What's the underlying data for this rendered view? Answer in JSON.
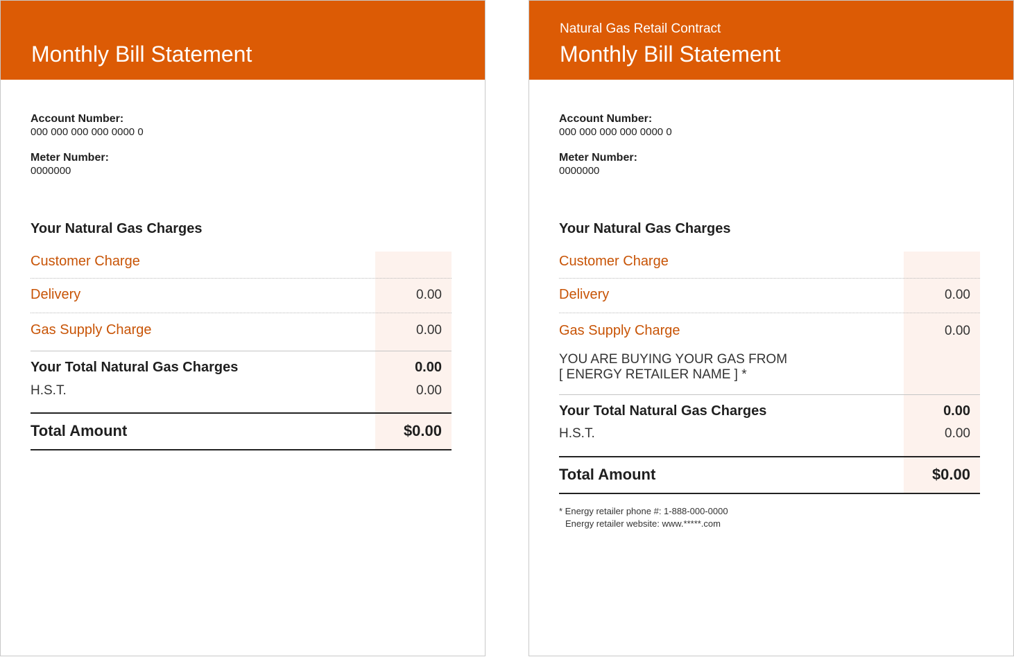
{
  "colors": {
    "accent": "#dc5b05",
    "charge_label": "#c85406",
    "amount_column": "#fdf2ed"
  },
  "left": {
    "title": "Monthly Bill Statement",
    "account_label": "Account Number:",
    "account_value": "000 000 000 000 0000 0",
    "meter_label": "Meter Number:",
    "meter_value": "0000000",
    "section_title": "Your Natural Gas Charges",
    "charges": [
      {
        "label": "Customer Charge",
        "value": ""
      },
      {
        "label": "Delivery",
        "value": "0.00"
      },
      {
        "label": "Gas Supply Charge",
        "value": "0.00"
      }
    ],
    "total_charges_label": "Your Total Natural Gas Charges",
    "total_charges_value": "0.00",
    "hst_label": "H.S.T.",
    "hst_value": "0.00",
    "total_amount_label": "Total Amount",
    "total_amount_value": "$0.00"
  },
  "right": {
    "subtitle": "Natural Gas Retail Contract",
    "title": "Monthly Bill Statement",
    "account_label": "Account Number:",
    "account_value": "000 000 000 000 0000 0",
    "meter_label": "Meter Number:",
    "meter_value": "0000000",
    "section_title": "Your Natural Gas Charges",
    "charges": [
      {
        "label": "Customer Charge",
        "value": ""
      },
      {
        "label": "Delivery",
        "value": "0.00"
      },
      {
        "label": "Gas Supply Charge",
        "value": "0.00"
      }
    ],
    "retailer_notice_line1": "YOU ARE BUYING YOUR GAS FROM",
    "retailer_notice_line2": "[ ENERGY RETAILER NAME ] *",
    "total_charges_label": "Your Total Natural Gas Charges",
    "total_charges_value": "0.00",
    "hst_label": "H.S.T.",
    "hst_value": "0.00",
    "total_amount_label": "Total Amount",
    "total_amount_value": "$0.00",
    "footnote_line1": "* Energy retailer phone #: 1-888-000-0000",
    "footnote_line2": "Energy retailer website: www.*****.com"
  }
}
